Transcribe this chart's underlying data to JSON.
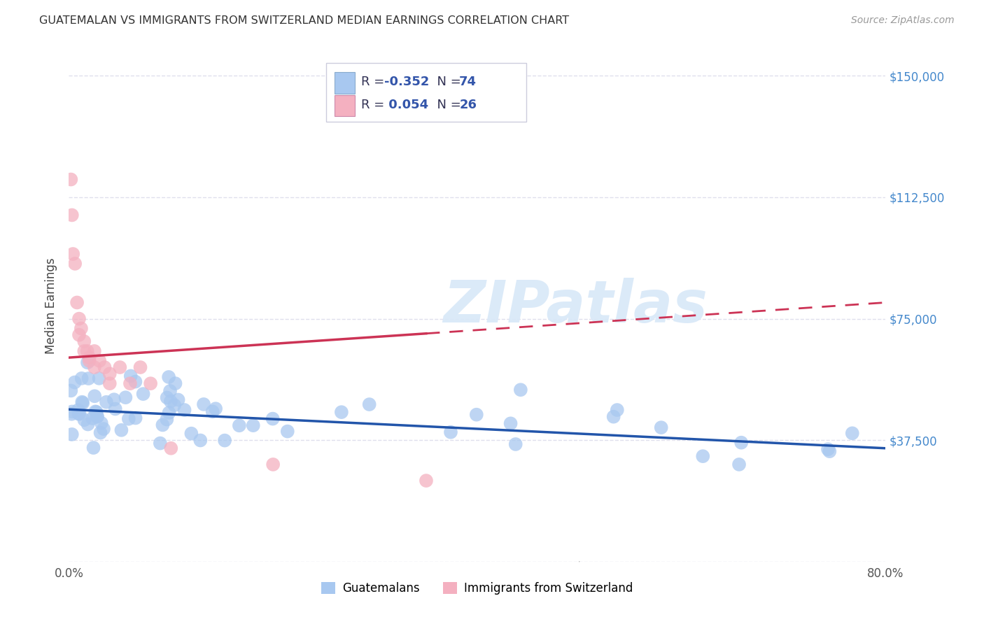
{
  "title": "GUATEMALAN VS IMMIGRANTS FROM SWITZERLAND MEDIAN EARNINGS CORRELATION CHART",
  "source": "Source: ZipAtlas.com",
  "ylabel": "Median Earnings",
  "y_ticks": [
    0,
    37500,
    75000,
    112500,
    150000
  ],
  "y_tick_labels": [
    "",
    "$37,500",
    "$75,000",
    "$112,500",
    "$150,000"
  ],
  "watermark": "ZIPatlas",
  "blue_R": "-0.352",
  "blue_N": "74",
  "pink_R": "0.054",
  "pink_N": "26",
  "legend_label_blue": "Guatemalans",
  "legend_label_pink": "Immigrants from Switzerland",
  "blue_color": "#A8C8F0",
  "pink_color": "#F4B0C0",
  "blue_line_color": "#2255AA",
  "pink_line_color": "#CC3355",
  "xlim": [
    0,
    0.8
  ],
  "ylim": [
    0,
    158000
  ],
  "background_color": "#FFFFFF",
  "grid_color": "#D8D8E8",
  "legend_text_color": "#3355AA",
  "legend_label_color": "#333333",
  "title_color": "#333333",
  "source_color": "#999999",
  "right_axis_color": "#4488CC"
}
